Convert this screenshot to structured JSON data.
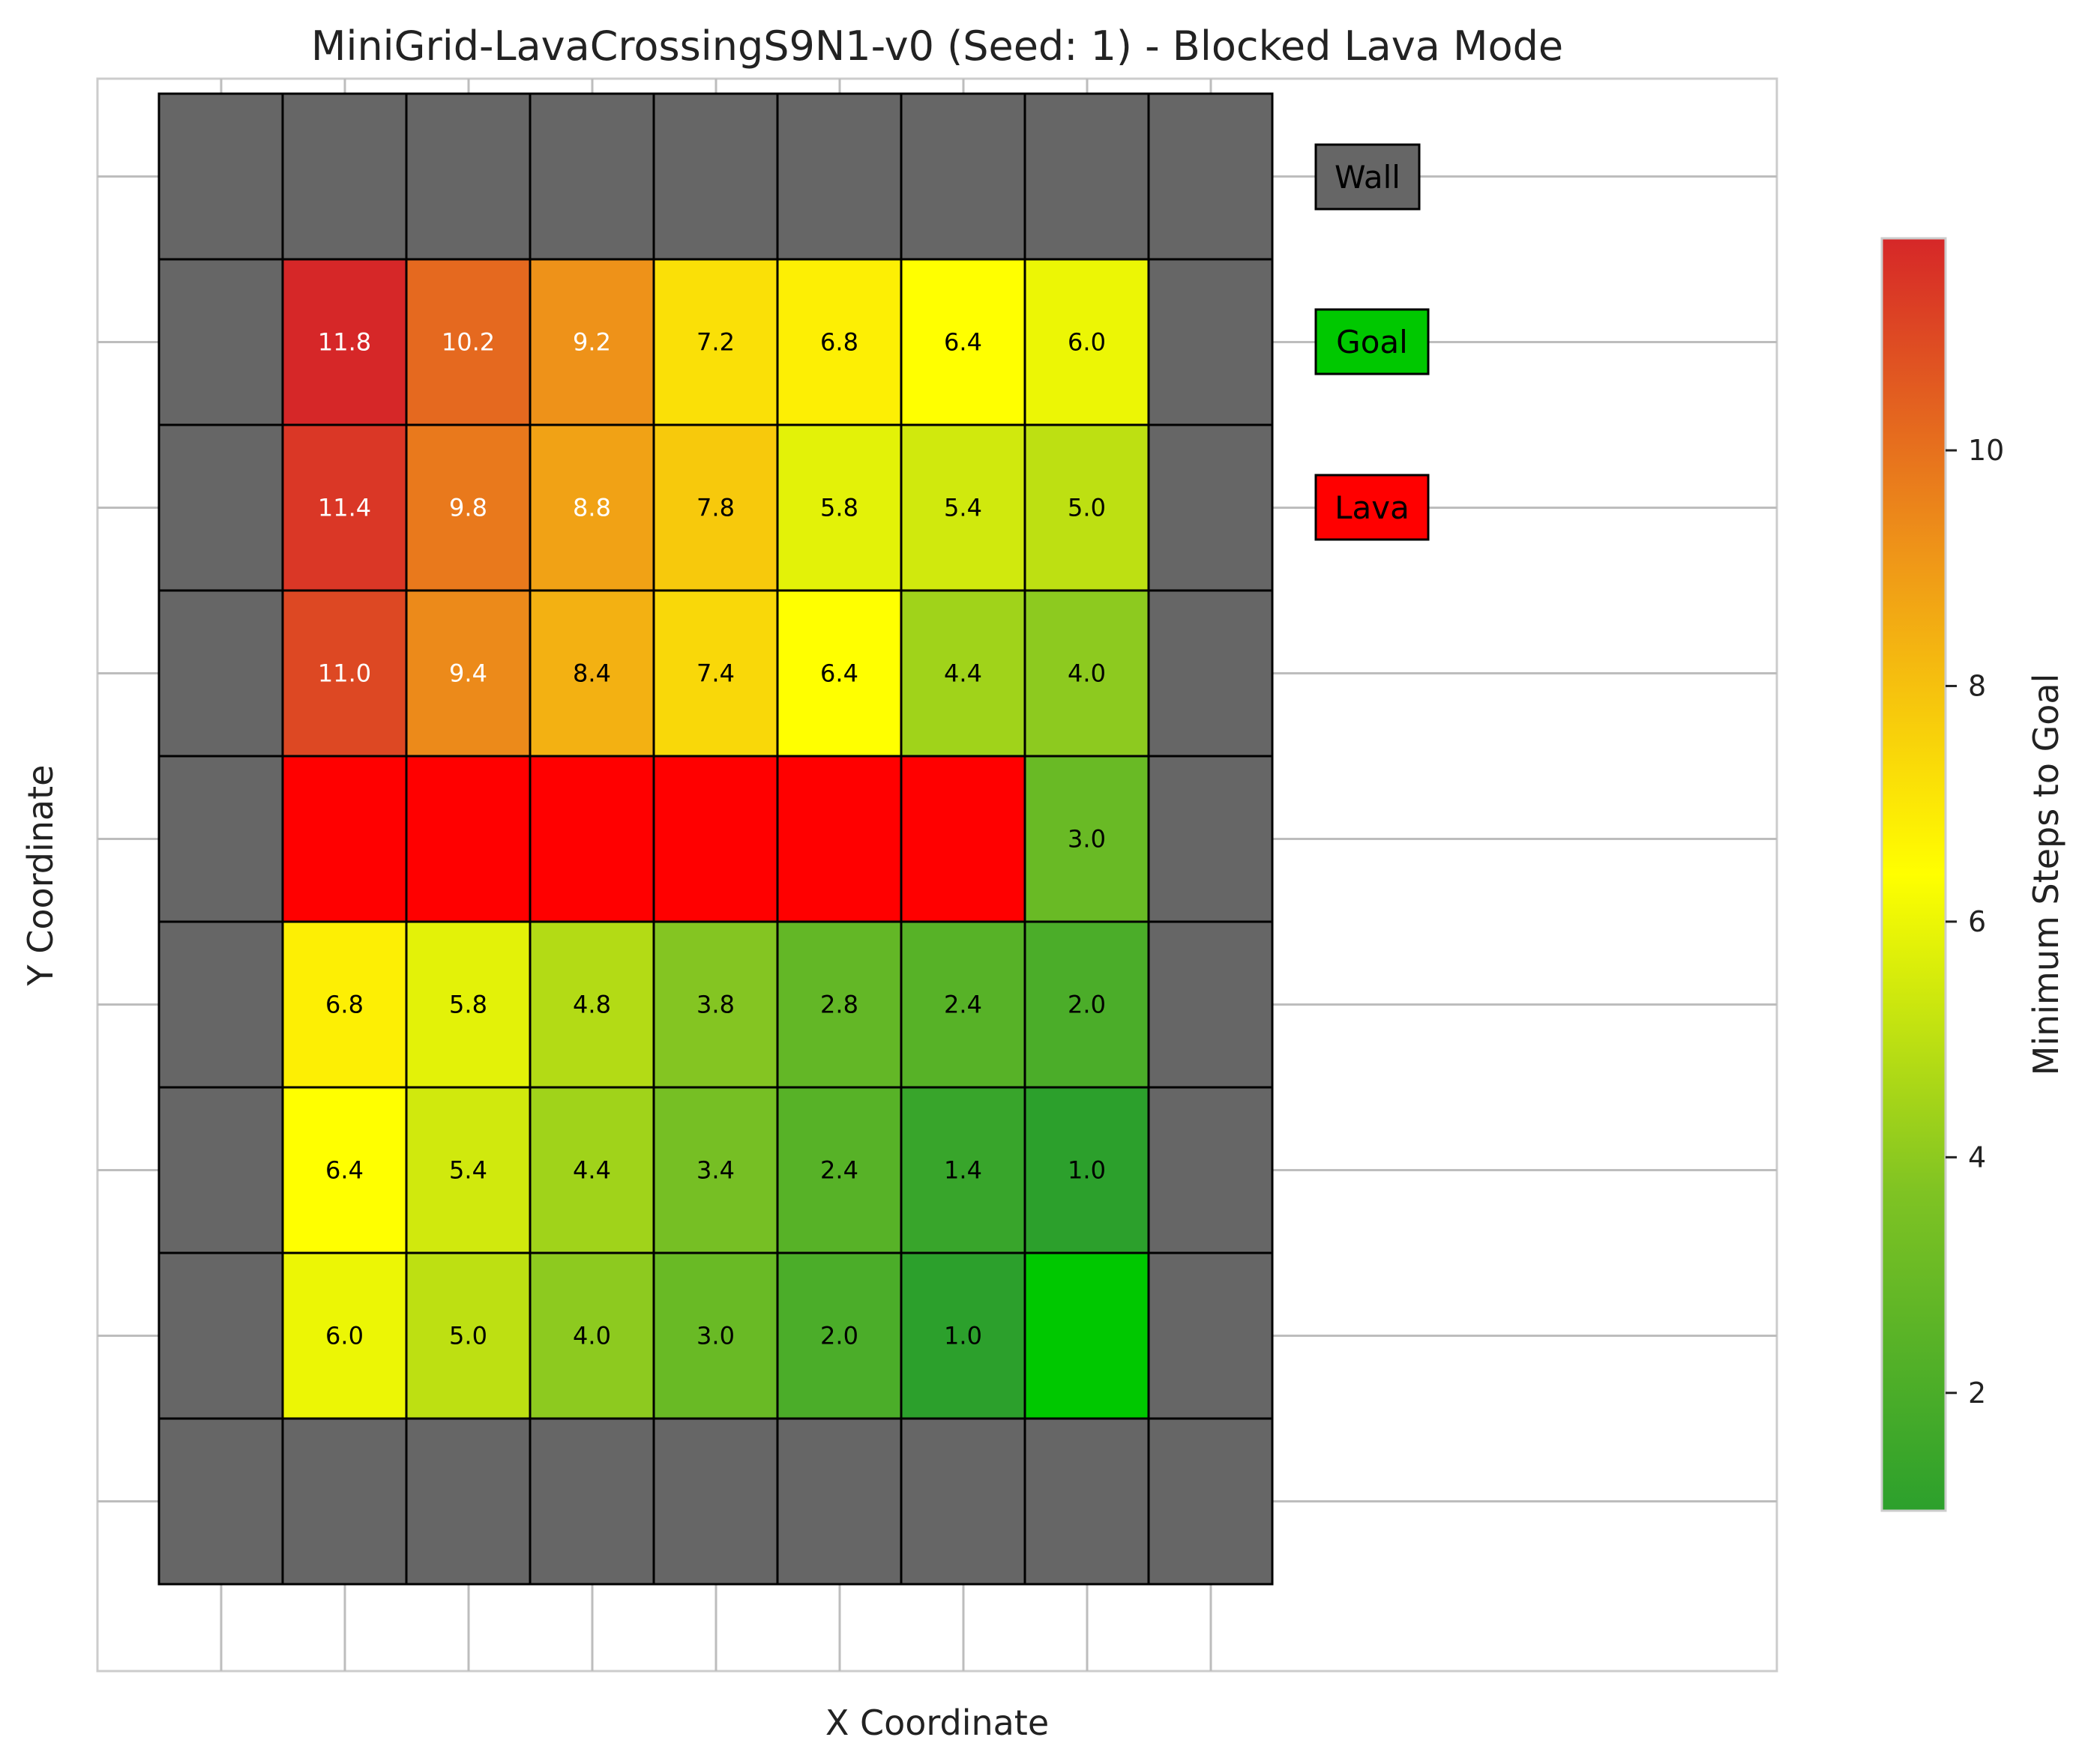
{
  "chart_data": {
    "type": "heatmap",
    "title": "MiniGrid-LavaCrossingS9N1-v0 (Seed: 1) - Blocked Lava Mode",
    "xlabel": "X Coordinate",
    "ylabel": "Y Coordinate",
    "colorbar": {
      "label": "Minimum Steps to Goal",
      "range": [
        1.0,
        11.8
      ],
      "ticks": [
        2,
        4,
        6,
        8,
        10
      ],
      "colors": [
        "#2ca02c",
        "#7fc323",
        "#ffff00",
        "#ef9618",
        "#d62728"
      ]
    },
    "legend": {
      "placement": "right",
      "items": [
        {
          "label": "Wall",
          "color": "#666666"
        },
        {
          "label": "Goal",
          "color": "#00c800"
        },
        {
          "label": "Lava",
          "color": "#ff0000"
        }
      ]
    },
    "grid_size": [
      9,
      9
    ],
    "rows": [
      [
        "W",
        "W",
        "W",
        "W",
        "W",
        "W",
        "W",
        "W",
        "W"
      ],
      [
        "W",
        11.8,
        10.2,
        9.2,
        7.2,
        6.8,
        6.4,
        6.0,
        "W"
      ],
      [
        "W",
        11.4,
        9.8,
        8.8,
        7.8,
        5.8,
        5.4,
        5.0,
        "W"
      ],
      [
        "W",
        11.0,
        9.4,
        8.4,
        7.4,
        6.4,
        4.4,
        4.0,
        "W"
      ],
      [
        "W",
        "L",
        "L",
        "L",
        "L",
        "L",
        "L",
        3.0,
        "W"
      ],
      [
        "W",
        6.8,
        5.8,
        4.8,
        3.8,
        2.8,
        2.4,
        2.0,
        "W"
      ],
      [
        "W",
        6.4,
        5.4,
        4.4,
        3.4,
        2.4,
        1.4,
        1.0,
        "W"
      ],
      [
        "W",
        6.0,
        5.0,
        4.0,
        3.0,
        2.0,
        1.0,
        "G",
        "W"
      ],
      [
        "W",
        "W",
        "W",
        "W",
        "W",
        "W",
        "W",
        "W",
        "W"
      ]
    ],
    "cell_codes": {
      "W": "wall",
      "L": "lava",
      "G": "goal"
    }
  }
}
